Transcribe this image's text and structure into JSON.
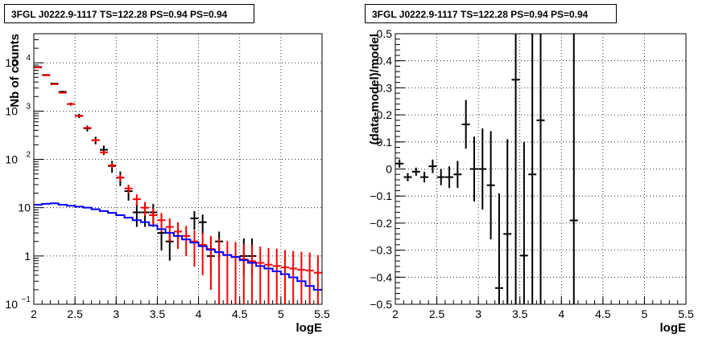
{
  "chart_data": [
    {
      "type": "histogram",
      "title": "3FGL J0222.9-1117 TS=122.28 PS=0.94 PS=0.94",
      "xlabel": "logE",
      "ylabel": "Nb of counts",
      "xlim": [
        2,
        5.5
      ],
      "ylim": [
        0.1,
        40000
      ],
      "yscale": "log",
      "grid": true,
      "x_ticks": [
        "2",
        "2.5",
        "3",
        "3.5",
        "4",
        "4.5",
        "5",
        "5.5"
      ],
      "y_ticks": [
        "10⁻¹",
        "1",
        "10",
        "10²",
        "10³",
        "10⁴"
      ],
      "series": [
        {
          "color": "#000000",
          "style": "errorbar",
          "x": [
            2.05,
            2.15,
            2.25,
            2.35,
            2.45,
            2.55,
            2.65,
            2.75,
            2.85,
            2.95,
            3.05,
            3.15,
            3.25,
            3.35,
            3.45,
            3.55,
            3.65,
            3.95,
            4.05,
            4.15,
            4.25,
            4.55,
            4.65
          ],
          "y": [
            8200,
            5600,
            3700,
            2500,
            1400,
            800,
            440,
            250,
            158,
            73,
            42,
            22,
            8,
            8,
            8,
            3,
            2,
            6,
            5,
            1,
            2,
            1,
            1
          ],
          "err_low": [
            250,
            200,
            170,
            140,
            100,
            80,
            60,
            45,
            35,
            20,
            14,
            8,
            4,
            4,
            4,
            1.7,
            1.2,
            2.5,
            2.2,
            0.6,
            1.2,
            0.6,
            0.6
          ],
          "err_high": [
            250,
            200,
            170,
            140,
            100,
            80,
            60,
            45,
            35,
            20,
            14,
            8,
            4,
            4,
            4,
            1.7,
            1.2,
            2.5,
            2.2,
            1.3,
            1.2,
            1.3,
            1.3
          ]
        },
        {
          "color": "#ff0000",
          "style": "errorbar",
          "x": [
            2.05,
            2.15,
            2.25,
            2.35,
            2.45,
            2.55,
            2.65,
            2.75,
            2.85,
            2.95,
            3.05,
            3.15,
            3.25,
            3.35,
            3.45,
            3.55,
            3.65,
            3.75,
            3.85,
            3.95,
            4.05,
            4.15,
            4.25,
            4.35,
            4.45,
            4.55,
            4.65,
            4.75,
            4.85,
            4.95,
            5.05,
            5.15,
            5.25,
            5.35,
            5.45
          ],
          "y": [
            8000,
            5500,
            3600,
            2400,
            1400,
            790,
            450,
            250,
            140,
            75,
            42,
            25,
            15,
            10,
            7,
            5.5,
            4,
            3.2,
            2.6,
            2,
            1.7,
            1.4,
            1.2,
            1.05,
            0.95,
            0.85,
            0.78,
            0.72,
            0.66,
            0.62,
            0.58,
            0.55,
            0.52,
            0.5,
            0.45
          ],
          "err_low": [
            90,
            75,
            60,
            50,
            38,
            28,
            21,
            16,
            12,
            9,
            6.5,
            5,
            3.9,
            3.2,
            2.6,
            2.3,
            2,
            1.8,
            1.6,
            1.4,
            1.3,
            1.2,
            1.1,
            1,
            0.9,
            0.8,
            0.75,
            0.7,
            0.62,
            0.58,
            0.54,
            0.51,
            0.48,
            0.46,
            0.41
          ],
          "err_high": [
            90,
            75,
            60,
            50,
            38,
            28,
            21,
            16,
            12,
            9,
            6.5,
            5,
            3.9,
            3.2,
            2.6,
            2.3,
            2,
            1.8,
            1.6,
            1.4,
            1.3,
            1.2,
            1.1,
            1,
            1,
            0.9,
            0.9,
            0.85,
            0.8,
            0.8,
            0.75,
            0.72,
            0.7,
            0.68,
            0.6
          ]
        },
        {
          "color": "#0000ff",
          "style": "step",
          "x_edges": [
            2.0,
            2.1,
            2.2,
            2.3,
            2.4,
            2.5,
            2.6,
            2.7,
            2.8,
            2.9,
            3.0,
            3.1,
            3.2,
            3.3,
            3.4,
            3.5,
            3.6,
            3.7,
            3.8,
            3.9,
            4.0,
            4.1,
            4.2,
            4.3,
            4.4,
            4.5,
            4.6,
            4.7,
            4.8,
            4.9,
            5.0,
            5.1,
            5.2,
            5.3,
            5.4,
            5.5
          ],
          "y": [
            11.5,
            12,
            12.3,
            11.5,
            11,
            10.5,
            10,
            9.3,
            8.5,
            7.8,
            7,
            6.2,
            5.5,
            5,
            4.3,
            3.6,
            3,
            2.6,
            2.2,
            1.9,
            1.6,
            1.35,
            1.2,
            1.05,
            0.95,
            0.82,
            0.72,
            0.62,
            0.55,
            0.48,
            0.42,
            0.36,
            0.3,
            0.24,
            0.2
          ]
        }
      ]
    },
    {
      "type": "errorbar",
      "title": "3FGL J0222.9-1117 TS=122.28 PS=0.94 PS=0.94",
      "xlabel": "logE",
      "ylabel": "(data-model)/model",
      "xlim": [
        2,
        5.5
      ],
      "ylim": [
        -0.5,
        0.5
      ],
      "grid": true,
      "x_ticks": [
        "2",
        "2.5",
        "3",
        "3.5",
        "4",
        "4.5",
        "5",
        "5.5"
      ],
      "y_ticks": [
        "-0.5",
        "-0.4",
        "-0.3",
        "-0.2",
        "-0.1",
        "0",
        "0.1",
        "0.2",
        "0.3",
        "0.4",
        "0.5"
      ],
      "series": [
        {
          "color": "#000000",
          "x": [
            2.05,
            2.15,
            2.25,
            2.35,
            2.45,
            2.55,
            2.65,
            2.75,
            2.85,
            2.95,
            3.05,
            3.15,
            3.25,
            3.35,
            3.45,
            3.55,
            3.65,
            3.75,
            4.15
          ],
          "y": [
            0.02,
            -0.03,
            -0.01,
            -0.03,
            0.01,
            -0.03,
            -0.03,
            -0.02,
            0.165,
            0.0,
            0.0,
            -0.06,
            -0.44,
            -0.24,
            0.33,
            -0.32,
            -0.02,
            0.18,
            -0.19
          ],
          "err": [
            0.015,
            0.015,
            0.015,
            0.02,
            0.025,
            0.03,
            0.04,
            0.05,
            0.09,
            0.12,
            0.15,
            0.2,
            0.35,
            0.35,
            0.9,
            0.42,
            0.9,
            1.0,
            1.5
          ]
        }
      ]
    }
  ]
}
